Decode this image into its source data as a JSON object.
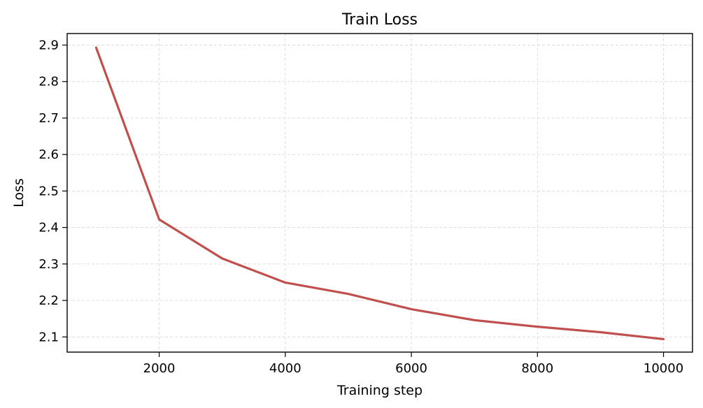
{
  "chart_data": {
    "type": "line",
    "title": "Train Loss",
    "xlabel": "Training step",
    "ylabel": "Loss",
    "xlim": [
      540,
      10460
    ],
    "ylim": [
      2.0584,
      2.9316
    ],
    "x_ticks": [
      2000,
      4000,
      6000,
      8000,
      10000
    ],
    "y_ticks": [
      2.1,
      2.2,
      2.3,
      2.4,
      2.5,
      2.6,
      2.7,
      2.8,
      2.9
    ],
    "grid": true,
    "series": [
      {
        "color": "#c0504d",
        "x": [
          1000,
          2000,
          3000,
          4000,
          5000,
          6000,
          7000,
          8000,
          9000,
          10000
        ],
        "y": [
          2.893,
          2.422,
          2.315,
          2.249,
          2.218,
          2.176,
          2.146,
          2.128,
          2.113,
          2.094
        ]
      }
    ]
  }
}
